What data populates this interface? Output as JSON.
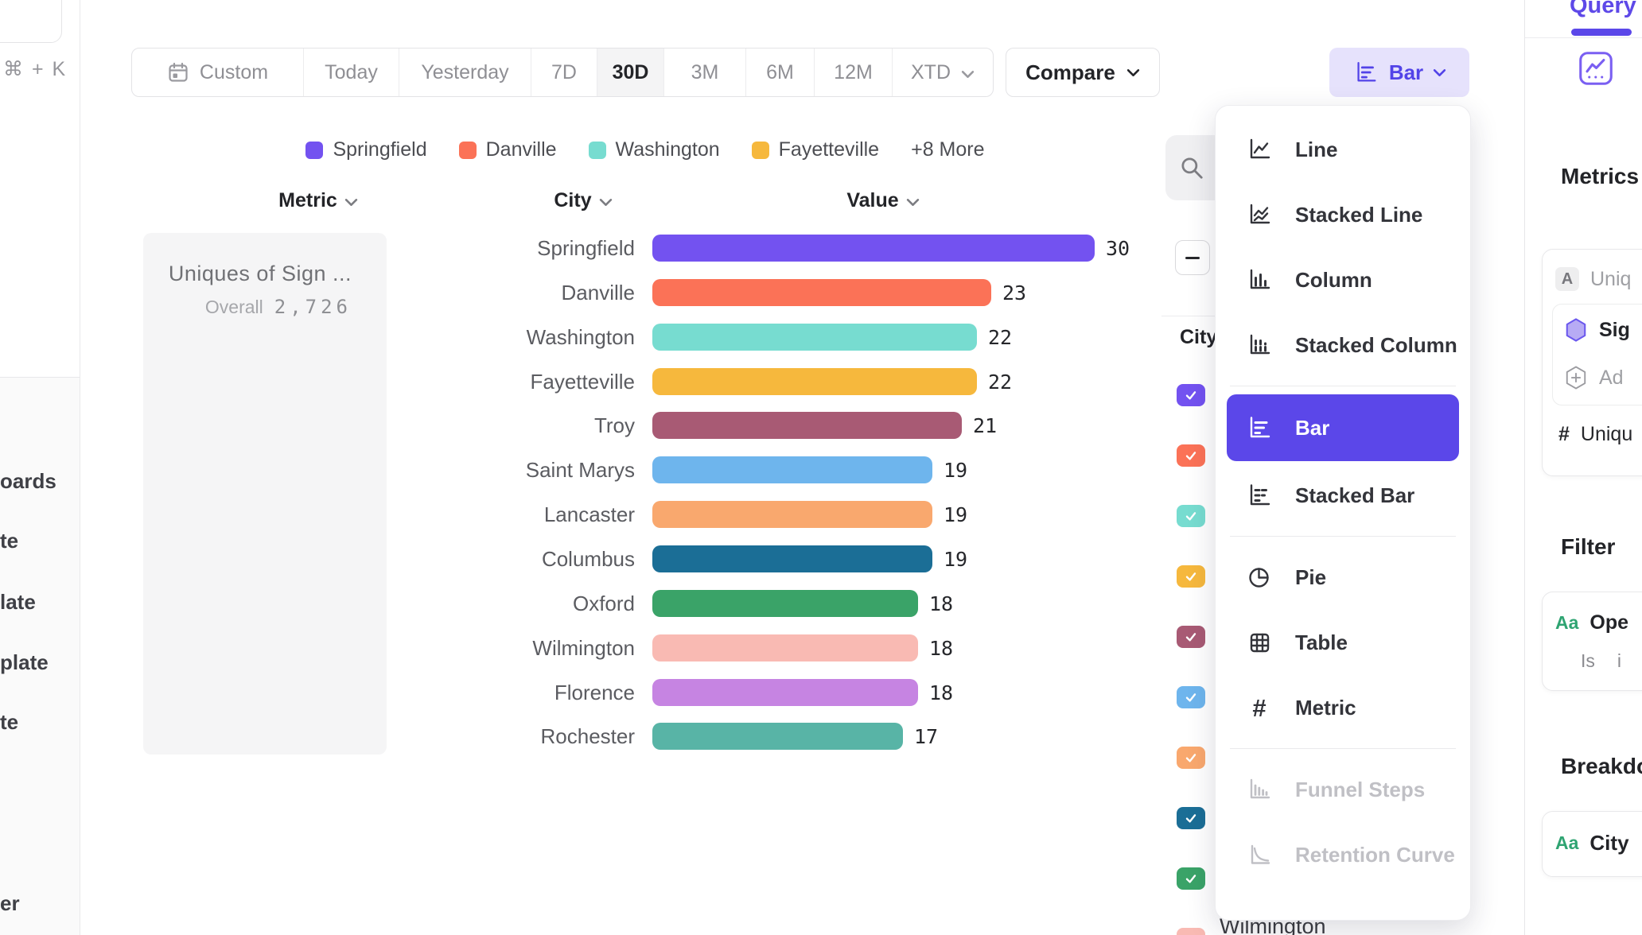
{
  "colors": {
    "accent": "#5b47e9",
    "accent_light_bg": "#e6e2fc",
    "accent_text": "#5243e8",
    "query_tab": "#5e49e8",
    "aa_badge_green": "#2fa472"
  },
  "sidebar": {
    "shortcut": "⌘ + K",
    "fragments": [
      "oards",
      "te",
      "late",
      "plate",
      "te",
      "er"
    ]
  },
  "toolbar": {
    "ranges": [
      {
        "label": "Custom",
        "icon": "calendar-icon"
      },
      {
        "label": "Today"
      },
      {
        "label": "Yesterday"
      },
      {
        "label": "7D"
      },
      {
        "label": "30D",
        "selected": true
      },
      {
        "label": "3M"
      },
      {
        "label": "6M"
      },
      {
        "label": "12M"
      },
      {
        "label": "XTD",
        "chevron": true
      }
    ],
    "compare": {
      "label": "Compare"
    }
  },
  "chart_type_button": {
    "label": "Bar",
    "icon": "bar-chart-icon"
  },
  "legend": {
    "entries": [
      {
        "label": "Springfield",
        "color": "#7352f0"
      },
      {
        "label": "Danville",
        "color": "#fb7257"
      },
      {
        "label": "Washington",
        "color": "#77dcd0"
      },
      {
        "label": "Fayetteville",
        "color": "#f6b83d"
      }
    ],
    "more": "+8 More"
  },
  "table": {
    "columns": [
      "Metric",
      "City",
      "Value"
    ]
  },
  "metric_card": {
    "title": "Uniques of Sign ...",
    "overall_label": "Overall",
    "overall_value": "2,726"
  },
  "chart_data": {
    "type": "bar",
    "orientation": "horizontal",
    "title": "Uniques of Sign ...",
    "overall_total": 2726,
    "categories": [
      "Springfield",
      "Danville",
      "Washington",
      "Fayetteville",
      "Troy",
      "Saint Marys",
      "Lancaster",
      "Columbus",
      "Oxford",
      "Wilmington",
      "Florence",
      "Rochester"
    ],
    "values": [
      30,
      23,
      22,
      22,
      21,
      19,
      19,
      19,
      18,
      18,
      18,
      17
    ],
    "colors": [
      "#7352f0",
      "#fb7257",
      "#77dcd0",
      "#f6b83d",
      "#a85a74",
      "#6eb5ed",
      "#f9a86e",
      "#1b6e96",
      "#3aa368",
      "#f9bab3",
      "#c684e2",
      "#58b4a6"
    ],
    "xlim": [
      0,
      30
    ],
    "value_labels_shown": true,
    "grid": false,
    "legend_position": "top"
  },
  "city_panel": {
    "title": "City",
    "search_icon": "search-icon",
    "minus_icon": "minus-icon",
    "checkbox_count": 10,
    "checkboxes_checked": true,
    "visible_row_label": "Wilmington"
  },
  "chart_type_menu": {
    "groups": [
      {
        "items": [
          {
            "label": "Line",
            "icon": "line-chart-icon"
          },
          {
            "label": "Stacked Line",
            "icon": "stacked-line-chart-icon"
          },
          {
            "label": "Column",
            "icon": "column-chart-icon"
          },
          {
            "label": "Stacked Column",
            "icon": "stacked-column-chart-icon"
          }
        ]
      },
      {
        "items": [
          {
            "label": "Bar",
            "icon": "bar-chart-icon",
            "selected": true
          },
          {
            "label": "Stacked Bar",
            "icon": "stacked-bar-chart-icon"
          }
        ]
      },
      {
        "items": [
          {
            "label": "Pie",
            "icon": "pie-chart-icon"
          },
          {
            "label": "Table",
            "icon": "table-icon"
          },
          {
            "label": "Metric",
            "icon": "metric-hash-icon"
          }
        ]
      },
      {
        "items": [
          {
            "label": "Funnel Steps",
            "icon": "funnel-steps-icon",
            "disabled": true
          },
          {
            "label": "Retention Curve",
            "icon": "retention-curve-icon",
            "disabled": true
          }
        ]
      }
    ]
  },
  "query_panel": {
    "tab": "Query",
    "insights_icon": "insights-chart-icon",
    "metrics": {
      "heading": "Metrics",
      "badge": "A",
      "badge_row_label": "Uniq",
      "event_icon": "hexagon-icon",
      "event_label": "Sig",
      "add_icon": "add-hexagon-icon",
      "add_label": "Ad",
      "count_symbol": "#",
      "count_label": "Uniqu"
    },
    "filter": {
      "heading": "Filter",
      "type_badge": "Aa",
      "property_label": "Ope",
      "operator": "Is",
      "value": "i"
    },
    "breakdown": {
      "heading": "Breakdo",
      "type_badge": "Aa",
      "property_label": "City"
    }
  }
}
